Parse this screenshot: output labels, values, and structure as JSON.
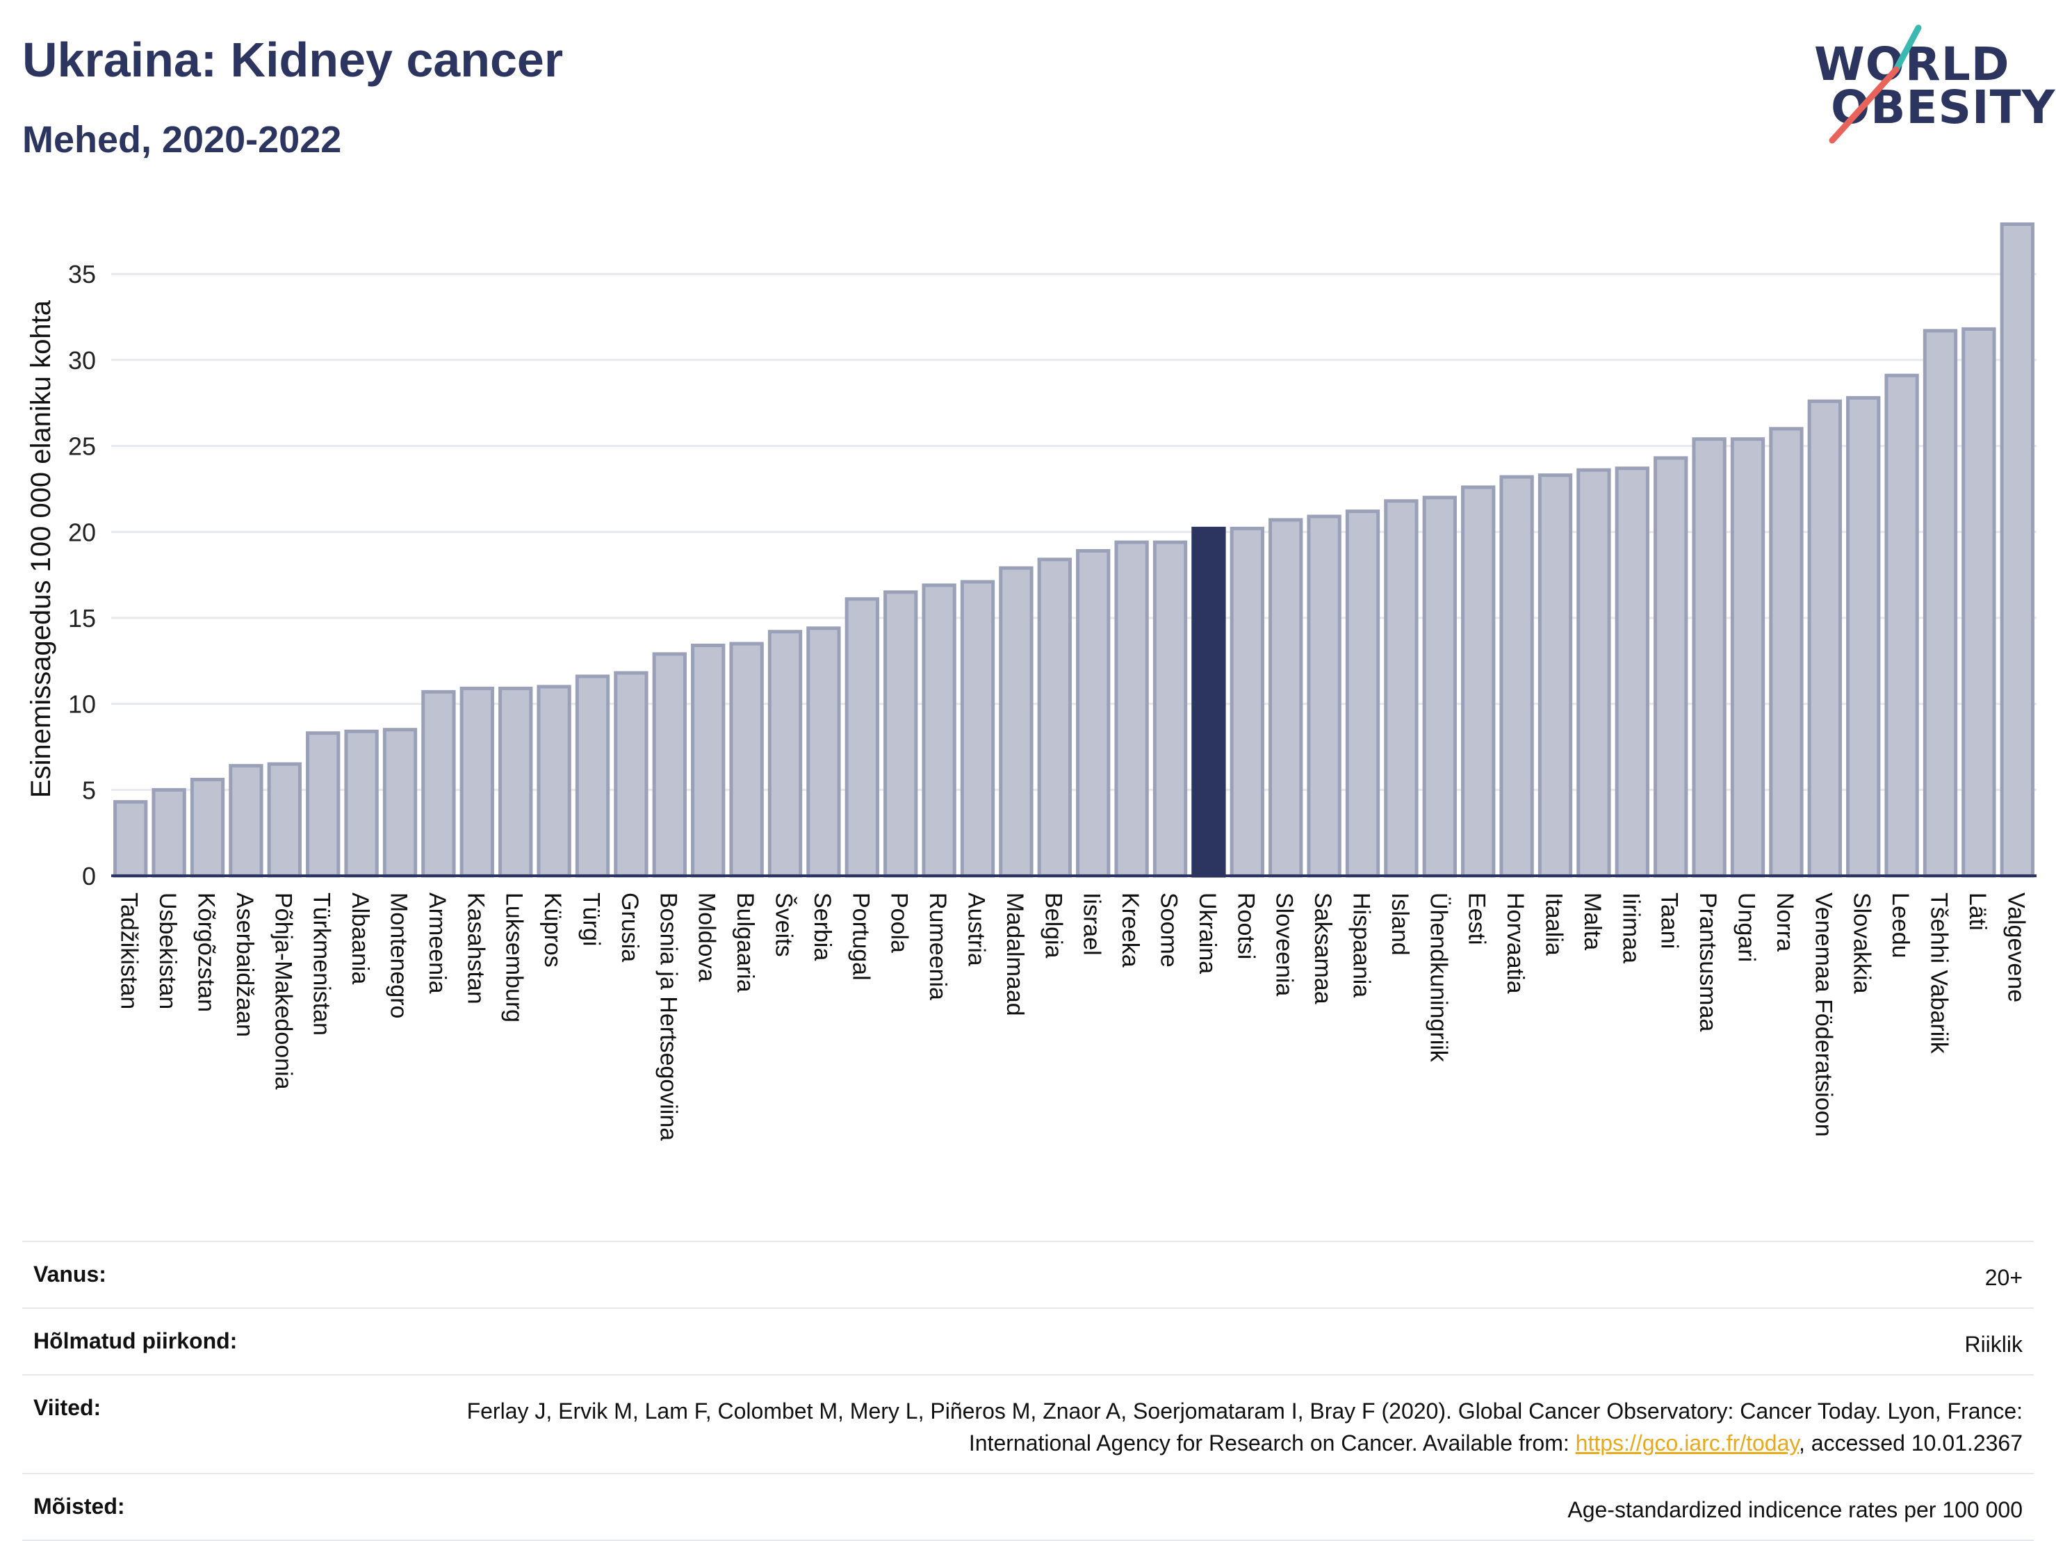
{
  "header": {
    "title": "Ukraina: Kidney cancer",
    "subtitle": "Mehed, 2020-2022"
  },
  "logo": {
    "line1": "WORLD",
    "line2": "OBESITY"
  },
  "colors": {
    "bar_fill": "#bec2d1",
    "bar_stroke": "#9aa0b8",
    "highlight": "#2b3560",
    "axis": "#2b3560",
    "grid": "#e6e8ee",
    "accent_teal": "#3bb8b0",
    "accent_coral": "#e8645a"
  },
  "chart_data": {
    "type": "bar",
    "ylabel": "Esinemissagedus 100 000 elaniku kohta",
    "ylim": [
      0,
      38
    ],
    "yticks": [
      0,
      5,
      10,
      15,
      20,
      25,
      30,
      35
    ],
    "grid": true,
    "highlight": "Ukraina",
    "categories": [
      "Tadžikistan",
      "Usbekistan",
      "Kõrgõzstan",
      "Aserbaidžaan",
      "Põhja-Makedoonia",
      "Türkmenistan",
      "Albaania",
      "Montenegro",
      "Armeenia",
      "Kasahstan",
      "Luksemburg",
      "Küpros",
      "Türgi",
      "Grusia",
      "Bosnia ja Hertsegoviina",
      "Moldova",
      "Bulgaaria",
      "Šveits",
      "Serbia",
      "Portugal",
      "Poola",
      "Rumeenia",
      "Austria",
      "Madalmaad",
      "Belgia",
      "Iisrael",
      "Kreeka",
      "Soome",
      "Ukraina",
      "Rootsi",
      "Sloveenia",
      "Saksamaa",
      "Hispaania",
      "Island",
      "Ühendkuningriik",
      "Eesti",
      "Horvaatia",
      "Itaalia",
      "Malta",
      "Iirimaa",
      "Taani",
      "Prantsusmaa",
      "Ungari",
      "Norra",
      "Venemaa Föderatsioon",
      "Slovakkia",
      "Leedu",
      "Tšehhi Vabariik",
      "Läti",
      "Valgevene"
    ],
    "values": [
      4.3,
      5.0,
      5.6,
      6.4,
      6.5,
      8.3,
      8.4,
      8.5,
      10.7,
      10.9,
      10.9,
      11.0,
      11.6,
      11.8,
      12.9,
      13.4,
      13.5,
      14.2,
      14.4,
      16.1,
      16.5,
      16.9,
      17.1,
      17.9,
      18.4,
      18.9,
      19.4,
      19.4,
      20.2,
      20.2,
      20.7,
      20.9,
      21.2,
      21.8,
      22.0,
      22.6,
      23.2,
      23.3,
      23.6,
      23.7,
      24.3,
      25.4,
      25.4,
      26.0,
      27.6,
      27.8,
      29.1,
      31.7,
      31.8,
      37.9
    ]
  },
  "info": [
    {
      "key": "Vanus:",
      "value": "20+"
    },
    {
      "key": "Hõlmatud piirkond:",
      "value": "Riiklik"
    },
    {
      "key": "Viited:",
      "value_pre": "Ferlay J, Ervik M, Lam F, Colombet M, Mery L, Piñeros M, Znaor A, Soerjomataram I, Bray F (2020). Global Cancer Observatory: Cancer Today. Lyon, France: International Agency for Research on Cancer. Available from: ",
      "link": "https://gco.iarc.fr/today",
      "value_post": ", accessed 10.01.2367"
    },
    {
      "key": "Mõisted:",
      "value": "Age-standardized indicence rates per 100 000"
    }
  ]
}
